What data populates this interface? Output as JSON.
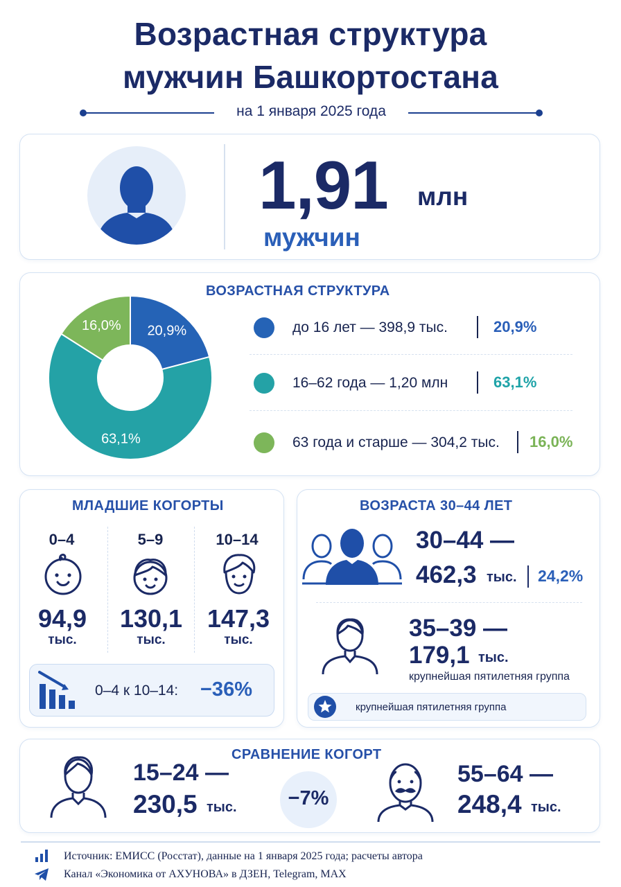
{
  "header": {
    "title_line1": "Возрастная структура",
    "title_line2": "мужчин Башкортостана",
    "subtitle": "на 1 января 2025 года"
  },
  "total": {
    "value": "1,91",
    "unit": "млн",
    "label": "мужчин",
    "icon": "person-icon"
  },
  "age_structure": {
    "title": "ВОЗРАСТНАЯ СТРУКТУРА",
    "items": [
      {
        "label": "до 16 лет — 398,9 тыс.",
        "pct": "20,9%",
        "color": "#2563b6"
      },
      {
        "label": "16–62 года — 1,20 млн",
        "pct": "63,1%",
        "color": "#24a2a6"
      },
      {
        "label": "63 года и старше — 304,2 тыс.",
        "pct": "16,0%",
        "color": "#7db65a"
      }
    ]
  },
  "chart_data": {
    "type": "pie",
    "title": "ВОЗРАСТНАЯ СТРУКТУРА",
    "categories": [
      "до 16 лет",
      "16–62 года",
      "63 года и старше"
    ],
    "values": [
      20.9,
      63.1,
      16.0
    ],
    "labels": [
      "20,9%",
      "63,1%",
      "16,0%"
    ],
    "colors": [
      "#2563b6",
      "#24a2a6",
      "#7db65a"
    ],
    "donut": true
  },
  "young": {
    "title": "МЛАДШИЕ КОГОРТЫ",
    "cohorts": [
      {
        "age": "0–4",
        "value": "94,9",
        "unit": "тыс.",
        "icon": "baby-face-icon"
      },
      {
        "age": "5–9",
        "value": "130,1",
        "unit": "тыс.",
        "icon": "child-face-icon"
      },
      {
        "age": "10–14",
        "value": "147,3",
        "unit": "тыс.",
        "icon": "teen-face-icon"
      }
    ],
    "trend_text": "0–4 к 10–14:",
    "trend_value": "−36%",
    "trend_icon": "decline-chart-icon"
  },
  "mid": {
    "title": "ВОЗРАСТА 30–44 ЛЕТ",
    "range": "30–44 —",
    "value": "462,3",
    "unit": "тыс.",
    "pct": "24,2%",
    "sub_range": "35–39 —",
    "sub_value": "179,1",
    "sub_unit": "тыс.",
    "sub_note": "крупнейшая пятилетняя группа",
    "pill_text": "крупнейшая пятилетняя группа",
    "group_icon": "group-icon",
    "man_icon": "man-outline-icon",
    "star_icon": "star-icon"
  },
  "compare": {
    "title": "СРАВНЕНИЕ КОГОРТ",
    "left_range": "15–24 —",
    "left_value": "230,5",
    "left_unit": "тыс.",
    "diff": "−7%",
    "right_range": "55–64 —",
    "right_value": "248,4",
    "right_unit": "тыс.",
    "left_icon": "young-man-icon",
    "right_icon": "old-man-mustache-icon"
  },
  "footer": {
    "source": "Источник: ЕМИСС (Росстат), данные на 1 января 2025 года; расчеты автора",
    "channel": "Канал «Экономика от АХУНОВА» в ДЗЕН, Telegram, MAX",
    "source_icon": "bar-chart-icon",
    "channel_icon": "telegram-icon"
  }
}
